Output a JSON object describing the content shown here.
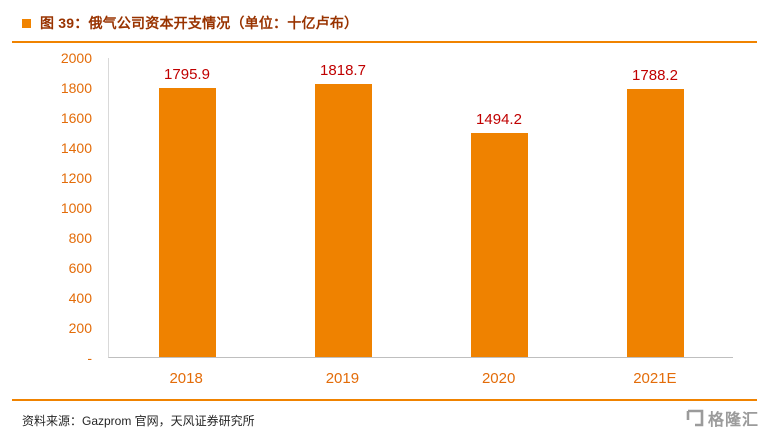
{
  "header": {
    "title": "图 39：俄气公司资本开支情况（单位：十亿卢布）"
  },
  "chart_data": {
    "type": "bar",
    "categories": [
      "2018",
      "2019",
      "2020",
      "2021E"
    ],
    "values": [
      1795.9,
      1818.7,
      1494.2,
      1788.2
    ],
    "value_labels": [
      "1795.9",
      "1818.7",
      "1494.2",
      "1788.2"
    ],
    "title": "图 39：俄气公司资本开支情况（单位：十亿卢布）",
    "xlabel": "",
    "ylabel": "",
    "ylim": [
      0,
      2000
    ],
    "ytick_step": 200,
    "ytick_labels": [
      "2000",
      "1800",
      "1600",
      "1400",
      "1200",
      "1000",
      "800",
      "600",
      "400",
      "200",
      "-"
    ],
    "grid": false,
    "legend": "none",
    "bar_color": "#EF8200",
    "value_label_color": "#C00000",
    "axis_label_color": "#E36C09"
  },
  "footer": {
    "source": "资料来源：Gazprom 官网，天风证券研究所",
    "logo_text": "格隆汇"
  },
  "colors": {
    "accent_orange": "#F08300",
    "title_red": "#993300"
  }
}
